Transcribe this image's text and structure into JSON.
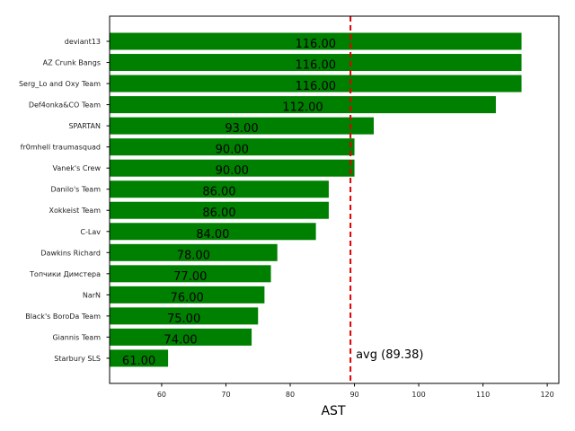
{
  "chart_data": {
    "type": "bar",
    "orientation": "horizontal",
    "title": "",
    "xlabel": "AST",
    "ylabel": "",
    "xlim": [
      51.9,
      121.8
    ],
    "xticks": [
      60,
      70,
      80,
      90,
      100,
      110,
      120
    ],
    "categories": [
      "deviant13",
      "AZ Crunk Bangs",
      "Serg_Lo and Oxy Team",
      "Def4onka&CO Team",
      "SPARTAN",
      "fr0mhell traumasquad",
      "Vanek's Crew",
      "Danilo's Team",
      "Xokkeist Team",
      "C-Lav",
      "Dawkins Richard",
      "Топчики Димстера",
      "NarN",
      "Black's BoroDa Team",
      "Giannis Team",
      "Starbury SLS"
    ],
    "values": [
      116,
      116,
      116,
      112,
      93,
      90,
      90,
      86,
      86,
      84,
      78,
      77,
      76,
      75,
      74,
      61
    ],
    "value_labels": [
      "116.00",
      "116.00",
      "116.00",
      "112.00",
      "93.00",
      "90.00",
      "90.00",
      "86.00",
      "86.00",
      "84.00",
      "78.00",
      "77.00",
      "76.00",
      "75.00",
      "74.00",
      "61.00"
    ],
    "bar_color": "#008000",
    "average": {
      "value": 89.38,
      "label": "avg (89.38)",
      "color": "#e00000"
    },
    "grid": false
  }
}
